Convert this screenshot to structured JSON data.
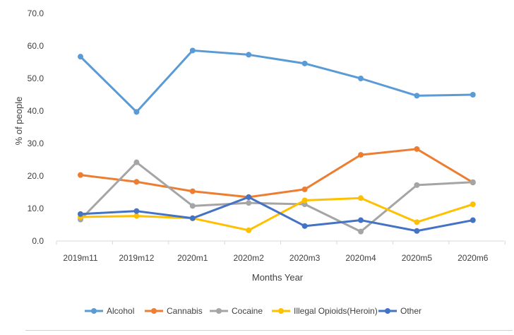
{
  "chart_data": {
    "type": "line",
    "title": "",
    "xlabel": "Months Year",
    "ylabel": "% of people",
    "ylim": [
      0,
      70
    ],
    "y_ticks": [
      "0.0",
      "10.0",
      "20.0",
      "30.0",
      "40.0",
      "50.0",
      "60.0",
      "70.0"
    ],
    "grid": false,
    "legend_position": "bottom",
    "categories": [
      "2019m11",
      "2019m12",
      "2020m1",
      "2020m2",
      "2020m3",
      "2020m4",
      "2020m5",
      "2020m6"
    ],
    "series": [
      {
        "name": "Alcohol",
        "color": "#5b9bd5",
        "values": [
          56.7,
          39.7,
          58.6,
          57.3,
          54.6,
          50.0,
          44.7,
          45.0
        ]
      },
      {
        "name": "Cannabis",
        "color": "#ed7d31",
        "values": [
          20.3,
          18.2,
          15.3,
          13.5,
          15.9,
          26.5,
          28.3,
          18.0
        ]
      },
      {
        "name": "Cocaine",
        "color": "#a5a5a5",
        "values": [
          6.6,
          24.2,
          10.8,
          11.7,
          11.3,
          2.9,
          17.2,
          18.1
        ]
      },
      {
        "name": "Illegal Opioids(Heroin)",
        "color": "#ffc000",
        "values": [
          7.4,
          7.7,
          7.0,
          3.3,
          12.5,
          13.2,
          5.8,
          11.3
        ]
      },
      {
        "name": "Other",
        "color": "#4472c4",
        "values": [
          8.3,
          9.2,
          7.0,
          13.5,
          4.6,
          6.4,
          3.1,
          6.4
        ]
      }
    ]
  }
}
